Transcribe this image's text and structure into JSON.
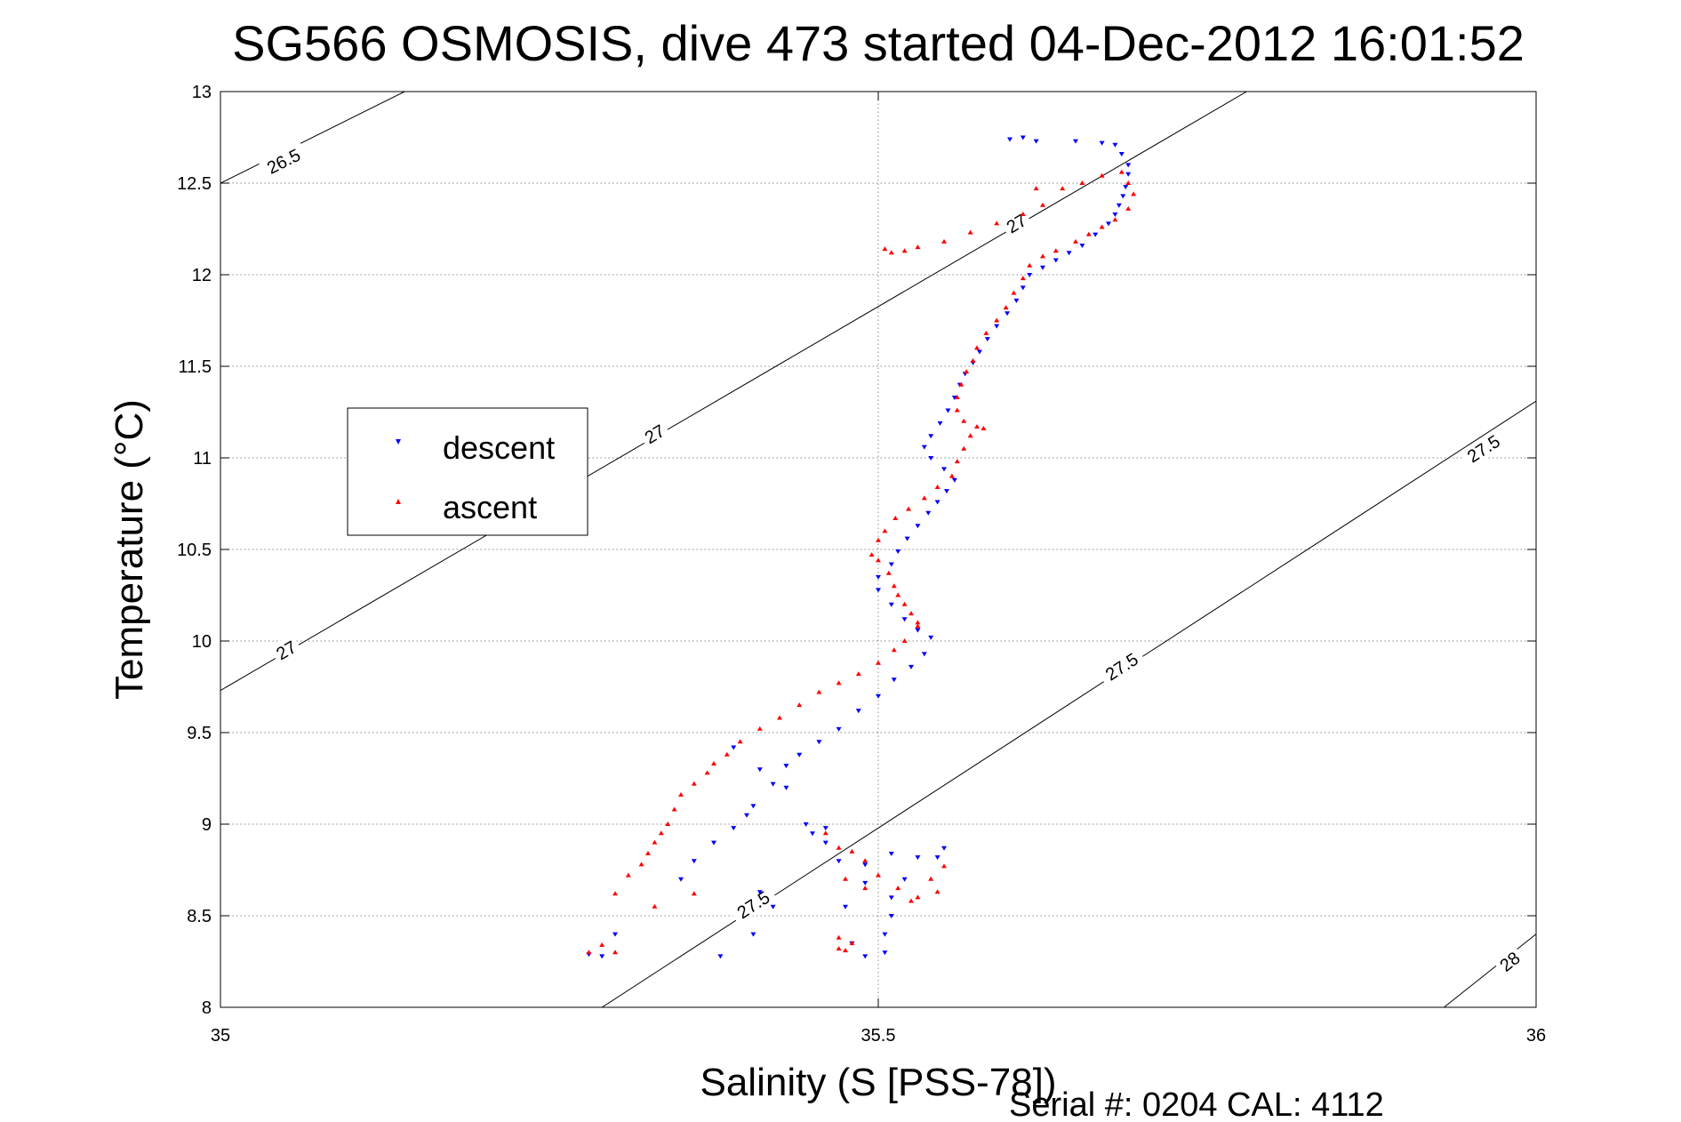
{
  "chart_data": {
    "type": "scatter",
    "title": "SG566 OSMOSIS, dive 473 started 04-Dec-2012 16:01:52",
    "xlabel": "Salinity (S [PSS-78])",
    "ylabel": "Temperature (°C)",
    "footer": "Serial #: 0204  CAL: 4112",
    "xlim": [
      35,
      36
    ],
    "ylim": [
      8,
      13
    ],
    "xticks": [
      35,
      35.5,
      36
    ],
    "xtick_labels": [
      "35",
      "35.5",
      "36"
    ],
    "yticks": [
      8,
      8.5,
      9,
      9.5,
      10,
      10.5,
      11,
      11.5,
      12,
      12.5,
      13
    ],
    "ytick_labels": [
      "8",
      "8.5",
      "9",
      "9.5",
      "10",
      "10.5",
      "11",
      "11.5",
      "12",
      "12.5",
      "13"
    ],
    "grid": true,
    "legend_position": "left",
    "density_contours": [
      {
        "level": 26.5,
        "points": [
          [
            35.0,
            12.5
          ],
          [
            35.14,
            13.0
          ]
        ],
        "labels": [
          {
            "text": "26.5",
            "x": 35.048,
            "y": 12.62
          }
        ]
      },
      {
        "level": 27,
        "points": [
          [
            35.0,
            9.73
          ],
          [
            35.78,
            13.0
          ]
        ],
        "labels": [
          {
            "text": "27",
            "x": 35.05,
            "y": 9.95
          },
          {
            "text": "27",
            "x": 35.33,
            "y": 11.13
          },
          {
            "text": "27",
            "x": 35.605,
            "y": 12.28
          }
        ]
      },
      {
        "level": 27.5,
        "points": [
          [
            35.29,
            8.0
          ],
          [
            36.0,
            11.31
          ]
        ],
        "labels": [
          {
            "text": "27.5",
            "x": 35.405,
            "y": 8.56
          },
          {
            "text": "27.5",
            "x": 35.685,
            "y": 9.86
          },
          {
            "text": "27.5",
            "x": 35.96,
            "y": 11.05
          }
        ]
      },
      {
        "level": 28,
        "points": [
          [
            35.93,
            8.0
          ],
          [
            36.0,
            8.4
          ]
        ],
        "labels": [
          {
            "text": "28",
            "x": 35.98,
            "y": 8.25
          }
        ]
      }
    ],
    "series": [
      {
        "name": "descent",
        "marker": "triangle-down",
        "color": "#0000ff",
        "points": [
          [
            35.6,
            12.74
          ],
          [
            35.61,
            12.75
          ],
          [
            35.62,
            12.73
          ],
          [
            35.65,
            12.73
          ],
          [
            35.67,
            12.72
          ],
          [
            35.68,
            12.71
          ],
          [
            35.685,
            12.66
          ],
          [
            35.69,
            12.6
          ],
          [
            35.69,
            12.55
          ],
          [
            35.688,
            12.48
          ],
          [
            35.686,
            12.43
          ],
          [
            35.683,
            12.38
          ],
          [
            35.68,
            12.33
          ],
          [
            35.675,
            12.28
          ],
          [
            35.665,
            12.22
          ],
          [
            35.655,
            12.16
          ],
          [
            35.645,
            12.12
          ],
          [
            35.635,
            12.08
          ],
          [
            35.625,
            12.04
          ],
          [
            35.615,
            12.0
          ],
          [
            35.61,
            11.93
          ],
          [
            35.605,
            11.86
          ],
          [
            35.598,
            11.79
          ],
          [
            35.59,
            11.72
          ],
          [
            35.583,
            11.65
          ],
          [
            35.577,
            11.58
          ],
          [
            35.572,
            11.52
          ],
          [
            35.566,
            11.46
          ],
          [
            35.562,
            11.4
          ],
          [
            35.558,
            11.33
          ],
          [
            35.553,
            11.26
          ],
          [
            35.547,
            11.19
          ],
          [
            35.54,
            11.12
          ],
          [
            35.535,
            11.06
          ],
          [
            35.54,
            11.0
          ],
          [
            35.55,
            10.94
          ],
          [
            35.558,
            10.88
          ],
          [
            35.552,
            10.82
          ],
          [
            35.545,
            10.76
          ],
          [
            35.538,
            10.7
          ],
          [
            35.53,
            10.63
          ],
          [
            35.522,
            10.56
          ],
          [
            35.515,
            10.49
          ],
          [
            35.51,
            10.42
          ],
          [
            35.5,
            10.35
          ],
          [
            35.5,
            10.28
          ],
          [
            35.51,
            10.2
          ],
          [
            35.52,
            10.12
          ],
          [
            35.53,
            10.06
          ],
          [
            35.54,
            10.02
          ],
          [
            35.535,
            9.93
          ],
          [
            35.525,
            9.86
          ],
          [
            35.512,
            9.79
          ],
          [
            35.5,
            9.7
          ],
          [
            35.485,
            9.62
          ],
          [
            35.47,
            9.52
          ],
          [
            35.455,
            9.45
          ],
          [
            35.44,
            9.38
          ],
          [
            35.43,
            9.32
          ],
          [
            35.42,
            9.22
          ],
          [
            35.405,
            9.1
          ],
          [
            35.4,
            9.05
          ],
          [
            35.39,
            8.98
          ],
          [
            35.375,
            8.9
          ],
          [
            35.36,
            8.8
          ],
          [
            35.35,
            8.7
          ],
          [
            35.41,
            8.63
          ],
          [
            35.42,
            8.55
          ],
          [
            35.405,
            8.4
          ],
          [
            35.38,
            8.28
          ],
          [
            35.3,
            8.4
          ],
          [
            35.29,
            8.28
          ],
          [
            35.28,
            8.29
          ],
          [
            35.45,
            8.95
          ],
          [
            35.46,
            8.9
          ],
          [
            35.47,
            8.8
          ],
          [
            35.49,
            8.78
          ],
          [
            35.51,
            8.84
          ],
          [
            35.53,
            8.82
          ],
          [
            35.55,
            8.87
          ],
          [
            35.545,
            8.82
          ],
          [
            35.52,
            8.7
          ],
          [
            35.51,
            8.6
          ],
          [
            35.51,
            8.5
          ],
          [
            35.505,
            8.4
          ],
          [
            35.505,
            8.3
          ],
          [
            35.49,
            8.28
          ],
          [
            35.48,
            8.35
          ],
          [
            35.475,
            8.55
          ],
          [
            35.49,
            8.68
          ],
          [
            35.39,
            9.42
          ],
          [
            35.41,
            9.3
          ],
          [
            35.43,
            9.2
          ],
          [
            35.445,
            9.0
          ],
          [
            35.46,
            8.98
          ]
        ]
      },
      {
        "name": "ascent",
        "marker": "triangle-up",
        "color": "#ff0000",
        "points": [
          [
            35.505,
            12.14
          ],
          [
            35.51,
            12.12
          ],
          [
            35.52,
            12.13
          ],
          [
            35.53,
            12.15
          ],
          [
            35.55,
            12.18
          ],
          [
            35.57,
            12.23
          ],
          [
            35.59,
            12.28
          ],
          [
            35.61,
            12.33
          ],
          [
            35.625,
            12.38
          ],
          [
            35.62,
            12.47
          ],
          [
            35.64,
            12.47
          ],
          [
            35.655,
            12.5
          ],
          [
            35.67,
            12.54
          ],
          [
            35.685,
            12.56
          ],
          [
            35.69,
            12.5
          ],
          [
            35.694,
            12.44
          ],
          [
            35.69,
            12.36
          ],
          [
            35.68,
            12.3
          ],
          [
            35.67,
            12.26
          ],
          [
            35.66,
            12.22
          ],
          [
            35.65,
            12.18
          ],
          [
            35.635,
            12.13
          ],
          [
            35.625,
            12.1
          ],
          [
            35.615,
            12.05
          ],
          [
            35.61,
            11.98
          ],
          [
            35.603,
            11.9
          ],
          [
            35.597,
            11.82
          ],
          [
            35.59,
            11.75
          ],
          [
            35.582,
            11.68
          ],
          [
            35.575,
            11.6
          ],
          [
            35.572,
            11.53
          ],
          [
            35.567,
            11.47
          ],
          [
            35.563,
            11.4
          ],
          [
            35.56,
            11.33
          ],
          [
            35.56,
            11.26
          ],
          [
            35.565,
            11.2
          ],
          [
            35.575,
            11.17
          ],
          [
            35.58,
            11.16
          ],
          [
            35.57,
            11.12
          ],
          [
            35.565,
            11.05
          ],
          [
            35.56,
            10.98
          ],
          [
            35.556,
            10.9
          ],
          [
            35.545,
            10.84
          ],
          [
            35.535,
            10.78
          ],
          [
            35.523,
            10.72
          ],
          [
            35.513,
            10.67
          ],
          [
            35.505,
            10.6
          ],
          [
            35.5,
            10.55
          ],
          [
            35.495,
            10.47
          ],
          [
            35.5,
            10.44
          ],
          [
            35.508,
            10.37
          ],
          [
            35.512,
            10.3
          ],
          [
            35.515,
            10.25
          ],
          [
            35.52,
            10.2
          ],
          [
            35.525,
            10.15
          ],
          [
            35.53,
            10.1
          ],
          [
            35.53,
            10.08
          ],
          [
            35.52,
            10.0
          ],
          [
            35.512,
            9.95
          ],
          [
            35.5,
            9.88
          ],
          [
            35.485,
            9.82
          ],
          [
            35.47,
            9.77
          ],
          [
            35.455,
            9.72
          ],
          [
            35.44,
            9.65
          ],
          [
            35.425,
            9.58
          ],
          [
            35.41,
            9.52
          ],
          [
            35.395,
            9.45
          ],
          [
            35.385,
            9.38
          ],
          [
            35.375,
            9.33
          ],
          [
            35.37,
            9.28
          ],
          [
            35.36,
            9.22
          ],
          [
            35.35,
            9.16
          ],
          [
            35.345,
            9.08
          ],
          [
            35.34,
            9.0
          ],
          [
            35.335,
            8.95
          ],
          [
            35.33,
            8.9
          ],
          [
            35.325,
            8.84
          ],
          [
            35.32,
            8.78
          ],
          [
            35.31,
            8.72
          ],
          [
            35.3,
            8.62
          ],
          [
            35.29,
            8.34
          ],
          [
            35.28,
            8.3
          ],
          [
            35.3,
            8.3
          ],
          [
            35.46,
            8.95
          ],
          [
            35.47,
            8.87
          ],
          [
            35.48,
            8.85
          ],
          [
            35.49,
            8.8
          ],
          [
            35.5,
            8.72
          ],
          [
            35.515,
            8.65
          ],
          [
            35.53,
            8.6
          ],
          [
            35.54,
            8.7
          ],
          [
            35.55,
            8.77
          ],
          [
            35.545,
            8.63
          ],
          [
            35.525,
            8.58
          ],
          [
            35.49,
            8.65
          ],
          [
            35.475,
            8.7
          ],
          [
            35.47,
            8.38
          ],
          [
            35.48,
            8.35
          ],
          [
            35.475,
            8.31
          ],
          [
            35.47,
            8.32
          ],
          [
            35.33,
            8.55
          ],
          [
            35.36,
            8.62
          ]
        ]
      }
    ]
  }
}
